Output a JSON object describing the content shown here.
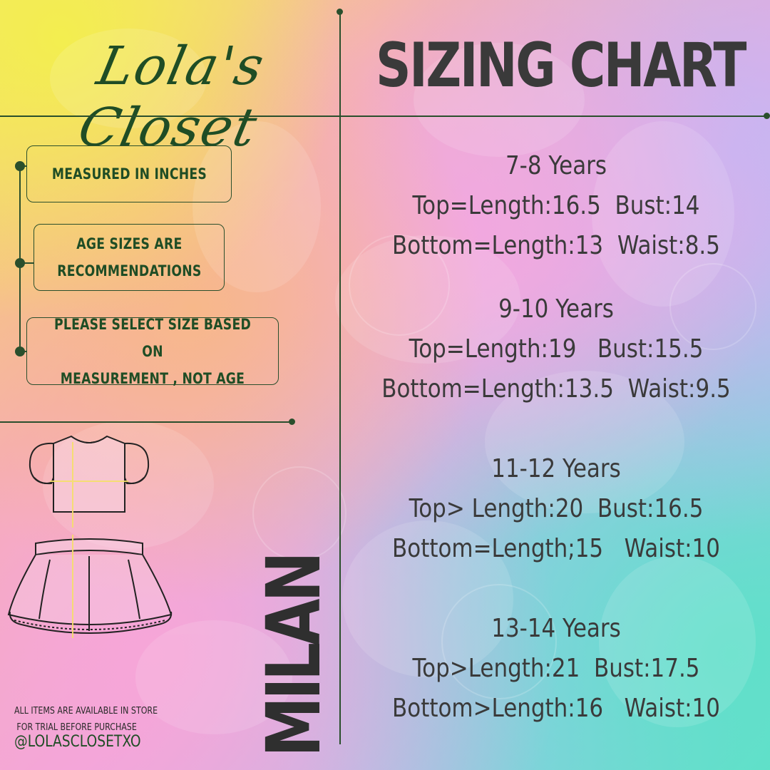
{
  "brand": {
    "logo_text": "Lola's Closet"
  },
  "header": {
    "title": "SIZING CHART"
  },
  "notes": [
    {
      "text": "MEASURED IN INCHES"
    },
    {
      "text": "AGE SIZES ARE\nRECOMMENDATIONS"
    },
    {
      "text": "PLEASE SELECT SIZE BASED ON\nMEASUREMENT , NOT AGE"
    }
  ],
  "sizes": [
    {
      "age": "7-8 Years",
      "top": "Top=Length:16.5  Bust:14",
      "bottom": "Bottom=Length:13  Waist:8.5"
    },
    {
      "age": "9-10 Years",
      "top": "Top=Length:19   Bust:15.5",
      "bottom": "Bottom=Length:13.5  Waist:9.5"
    },
    {
      "age": "11-12 Years",
      "top": "Top> Length:20  Bust:16.5",
      "bottom": "Bottom=Length;15   Waist:10"
    },
    {
      "age": "13-14 Years",
      "top": "Top>Length:21  Bust:17.5",
      "bottom": "Bottom>Length:16   Waist:10"
    }
  ],
  "product": {
    "name": "MILAN"
  },
  "footer": {
    "store_line1": "ALL ITEMS ARE AVAILABLE IN STORE",
    "store_line2": "FOR TRIAL BEFORE PURCHASE",
    "handle": "@LOLASCLOSETXO"
  },
  "colors": {
    "accent": "#1f4d25",
    "text": "#3a3a3a"
  },
  "icons": [
    "shirt-illustration",
    "skirt-illustration"
  ]
}
